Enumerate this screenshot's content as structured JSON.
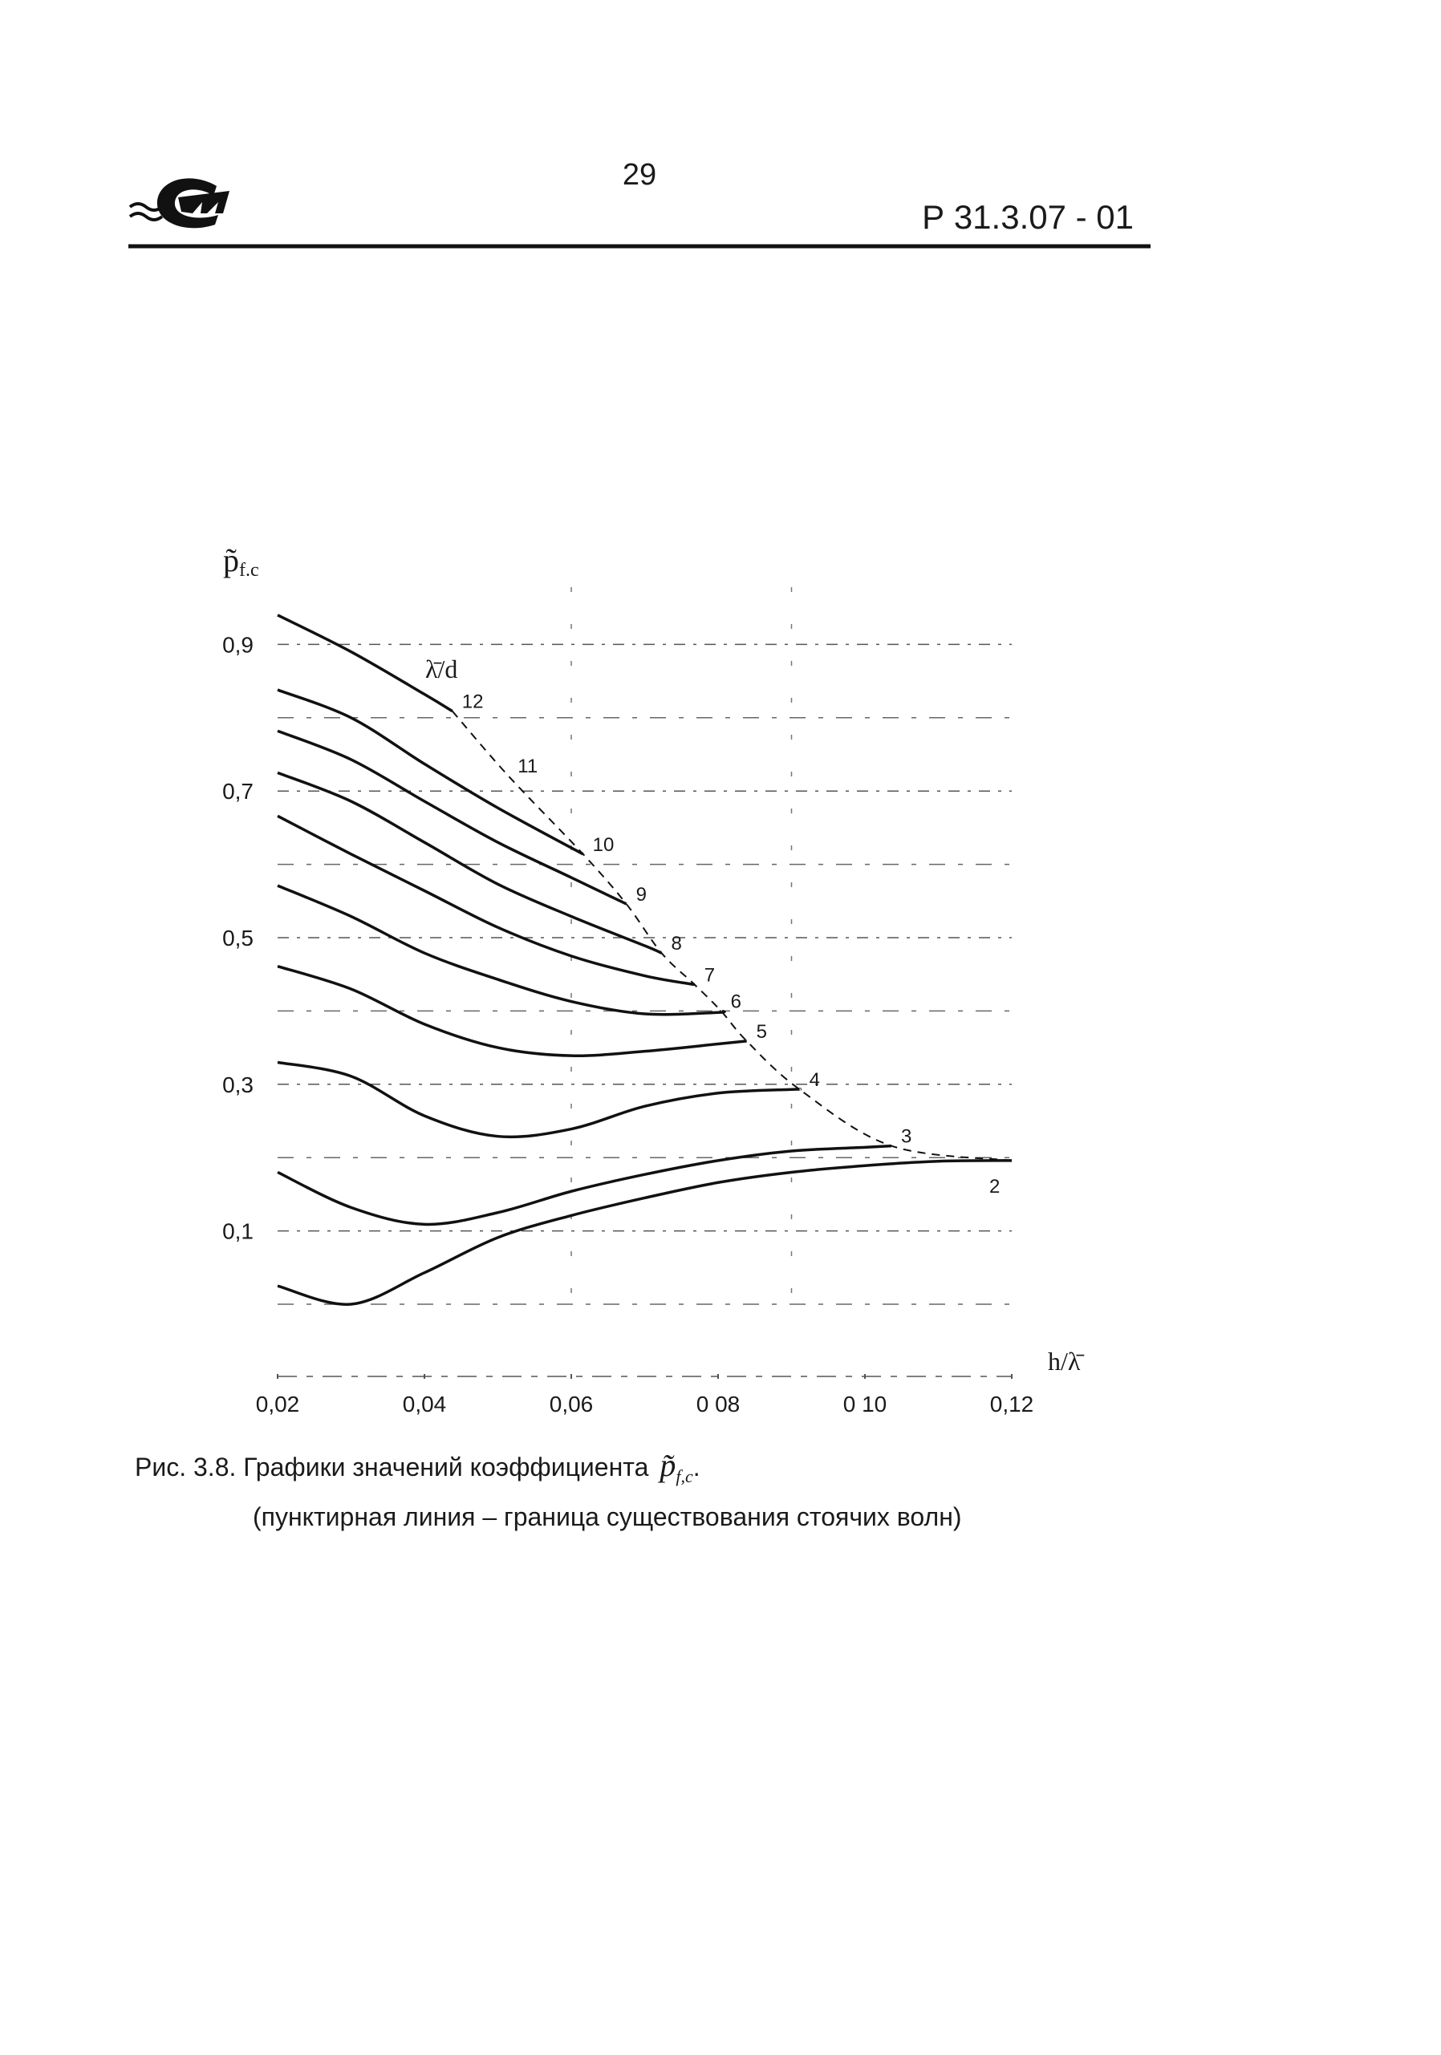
{
  "header": {
    "page_number": "29",
    "doc_code": "Р 31.3.07 - 01"
  },
  "chart_data": {
    "type": "line",
    "y_label": {
      "symbol": "p̃",
      "subscript": "f.c"
    },
    "x_label": "h/λ̄",
    "curves_title": "λ̄/d",
    "xlim": [
      0.02,
      0.12
    ],
    "ylim": [
      0,
      1
    ],
    "xticks": [
      {
        "value": 0.02,
        "label": "0,02"
      },
      {
        "value": 0.04,
        "label": "0,04"
      },
      {
        "value": 0.06,
        "label": "0,06"
      },
      {
        "value": 0.08,
        "label": "0 08"
      },
      {
        "value": 0.1,
        "label": "0 10"
      },
      {
        "value": 0.12,
        "label": "0,12"
      }
    ],
    "yticks": [
      {
        "value": 0.1,
        "label": "0,1"
      },
      {
        "value": 0.3,
        "label": "0,3"
      },
      {
        "value": 0.5,
        "label": "0,5"
      },
      {
        "value": 0.7,
        "label": "0,7"
      },
      {
        "value": 0.9,
        "label": "0,9"
      }
    ],
    "ygrid_minor": [
      0,
      0.2,
      0.4,
      0.6,
      0.8
    ],
    "xgrid": [
      0.06,
      0.09
    ],
    "grid": true,
    "color": "#111111",
    "series": [
      {
        "x": [
          0.02,
          0.03,
          0.04,
          0.0438
        ],
        "values": [
          0.94,
          0.89,
          0.832,
          0.809
        ]
      },
      {
        "x": [
          0.02,
          0.03,
          0.04,
          0.05,
          0.0616
        ],
        "values": [
          0.838,
          0.8,
          0.737,
          0.677,
          0.614
        ]
      },
      {
        "x": [
          0.02,
          0.03,
          0.04,
          0.05,
          0.06,
          0.0675
        ],
        "values": [
          0.782,
          0.743,
          0.686,
          0.63,
          0.582,
          0.546
        ]
      },
      {
        "x": [
          0.02,
          0.03,
          0.04,
          0.05,
          0.06,
          0.07,
          0.0723
        ],
        "values": [
          0.725,
          0.686,
          0.63,
          0.573,
          0.529,
          0.489,
          0.479
        ]
      },
      {
        "x": [
          0.02,
          0.03,
          0.04,
          0.05,
          0.06,
          0.07,
          0.0768
        ],
        "values": [
          0.666,
          0.614,
          0.564,
          0.514,
          0.475,
          0.448,
          0.436
        ]
      },
      {
        "x": [
          0.02,
          0.03,
          0.04,
          0.05,
          0.06,
          0.07,
          0.08,
          0.0804
        ],
        "values": [
          0.571,
          0.529,
          0.479,
          0.443,
          0.413,
          0.396,
          0.398,
          0.4
        ]
      },
      {
        "x": [
          0.02,
          0.03,
          0.04,
          0.05,
          0.06,
          0.07,
          0.08,
          0.0839
        ],
        "values": [
          0.461,
          0.43,
          0.382,
          0.35,
          0.339,
          0.345,
          0.355,
          0.359
        ]
      },
      {
        "x": [
          0.02,
          0.03,
          0.04,
          0.05,
          0.06,
          0.07,
          0.08,
          0.09,
          0.0911
        ],
        "values": [
          0.33,
          0.311,
          0.257,
          0.229,
          0.239,
          0.27,
          0.288,
          0.293,
          0.293
        ]
      },
      {
        "x": [
          0.02,
          0.03,
          0.04,
          0.05,
          0.06,
          0.07,
          0.08,
          0.09,
          0.1,
          0.1036
        ],
        "values": [
          0.18,
          0.132,
          0.109,
          0.125,
          0.154,
          0.177,
          0.196,
          0.209,
          0.214,
          0.216
        ]
      },
      {
        "x": [
          0.02,
          0.03,
          0.04,
          0.05,
          0.06,
          0.07,
          0.08,
          0.09,
          0.1,
          0.11,
          0.12
        ],
        "values": [
          0.025,
          0.0,
          0.043,
          0.091,
          0.121,
          0.145,
          0.166,
          0.18,
          0.189,
          0.195,
          0.196
        ]
      }
    ],
    "boundary": {
      "x": [
        0.0438,
        0.0514,
        0.0616,
        0.0675,
        0.0723,
        0.0768,
        0.0804,
        0.0839,
        0.0911,
        0.1036,
        0.12
      ],
      "values": [
        0.809,
        0.721,
        0.614,
        0.546,
        0.479,
        0.436,
        0.4,
        0.359,
        0.293,
        0.216,
        0.196
      ],
      "labels": [
        "12",
        "11",
        "10",
        "9",
        "8",
        "7",
        "6",
        "5",
        "4",
        "3",
        "2"
      ]
    }
  },
  "caption": {
    "line1": "Рис. 3.8. Графики значений коэффициента",
    "symbol": "p̃",
    "subscript": "f,c",
    "end": ".",
    "line2": "(пунктирная линия – граница существования стоячих волн)"
  }
}
